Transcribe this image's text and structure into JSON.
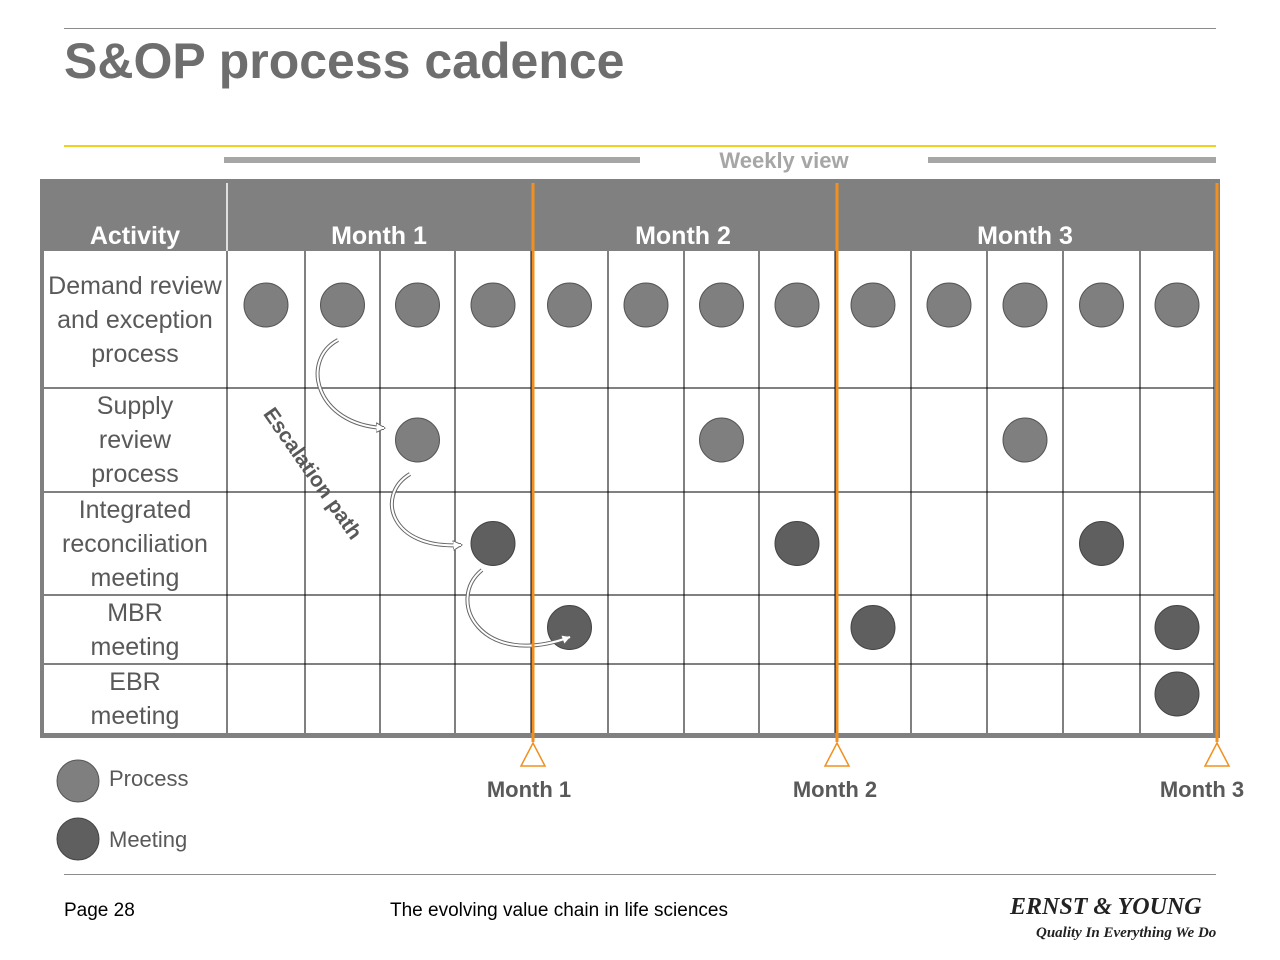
{
  "page": {
    "title": "S&OP process cadence"
  },
  "header": {
    "weekly_view": "Weekly view"
  },
  "table": {
    "activity_header": "Activity",
    "months": [
      "Month 1",
      "Month 2",
      "Month 3"
    ],
    "weeks_per_month": [
      4,
      4,
      5
    ],
    "rows": [
      {
        "label": "Demand review and exception process",
        "type": "process",
        "weeks": [
          1,
          2,
          3,
          4,
          5,
          6,
          7,
          8,
          9,
          10,
          11,
          12,
          13
        ]
      },
      {
        "label": "Supply review process",
        "type": "process",
        "weeks": [
          3,
          7,
          11
        ]
      },
      {
        "label": "Integrated reconciliation meeting",
        "type": "meeting",
        "weeks": [
          4,
          8,
          12
        ]
      },
      {
        "label": "MBR meeting",
        "type": "meeting",
        "weeks": [
          5,
          9,
          13
        ]
      },
      {
        "label": "EBR meeting",
        "type": "meeting",
        "weeks": [
          13
        ]
      }
    ]
  },
  "annotation": {
    "escalation": "Escalation path"
  },
  "milestones": [
    "Month 1",
    "Month 2",
    "Month 3"
  ],
  "legend": [
    {
      "label": "Process",
      "type": "process"
    },
    {
      "label": "Meeting",
      "type": "meeting"
    }
  ],
  "footer": {
    "page": "Page 28",
    "doc_title": "The evolving value chain in life sciences",
    "logo_name": "ERNST & YOUNG",
    "logo_tagline": "Quality In Everything We Do"
  },
  "colors": {
    "process": "#7f7f7f",
    "meeting": "#5f5f5f",
    "header_fill": "#808080",
    "accent_orange": "#f0901e",
    "accent_yellow": "#f0d020"
  }
}
